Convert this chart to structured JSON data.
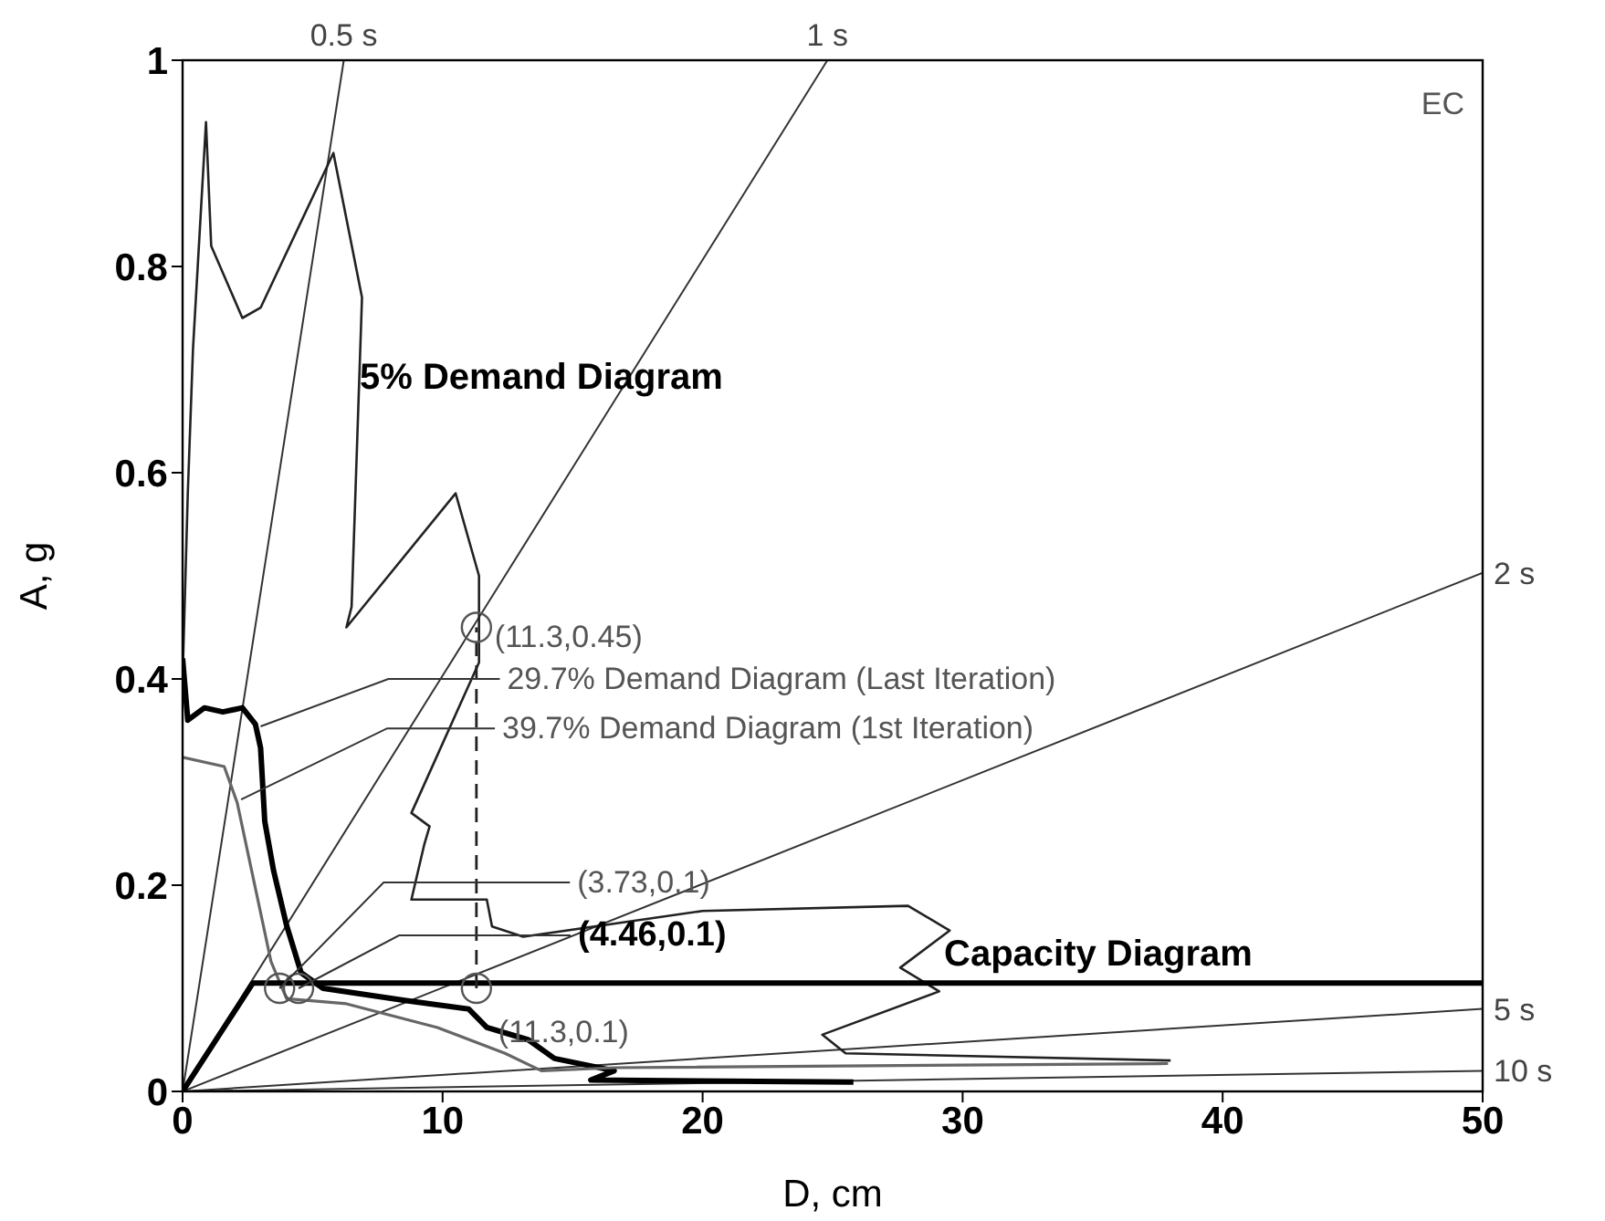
{
  "chart_data": {
    "type": "line",
    "xlabel": "D, cm",
    "ylabel": "A, g",
    "xlim": [
      0,
      50
    ],
    "ylim": [
      0,
      1
    ],
    "xticks": [
      0,
      10,
      20,
      30,
      40,
      50
    ],
    "yticks": [
      0,
      0.2,
      0.4,
      0.6,
      0.8,
      1
    ],
    "marker": "none",
    "series": [
      {
        "name": "0.5 s",
        "color": "#333333",
        "x": [
          0,
          6.2
        ],
        "values": [
          0,
          1
        ]
      },
      {
        "name": "1 s",
        "color": "#333333",
        "x": [
          0,
          24.8
        ],
        "values": [
          0,
          1
        ]
      },
      {
        "name": "2 s",
        "color": "#333333",
        "x": [
          0,
          50
        ],
        "values": [
          0,
          0.503
        ]
      },
      {
        "name": "5 s",
        "color": "#333333",
        "x": [
          0,
          50
        ],
        "values": [
          0,
          0.08
        ]
      },
      {
        "name": "10 s",
        "color": "#333333",
        "x": [
          0,
          50
        ],
        "values": [
          0,
          0.02
        ]
      },
      {
        "color": "#222222",
        "x": [
          0,
          0.2,
          0.4,
          0.9,
          1.1,
          2.3,
          3.0,
          5.8,
          6.9,
          6.5,
          6.3,
          10.5,
          11.4,
          11.4,
          8.8,
          9.5,
          9.3,
          8.8,
          11.7,
          11.9,
          13.1,
          20,
          27.9,
          29.5,
          27.6,
          29.1,
          24.6,
          25.5,
          38
        ],
        "values": [
          0.4,
          0.58,
          0.72,
          0.94,
          0.82,
          0.75,
          0.76,
          0.91,
          0.77,
          0.47,
          0.45,
          0.58,
          0.5,
          0.416,
          0.27,
          0.257,
          0.24,
          0.186,
          0.186,
          0.16,
          0.15,
          0.175,
          0.18,
          0.156,
          0.12,
          0.097,
          0.055,
          0.037,
          0.03
        ]
      },
      {
        "color": "#000000",
        "x": [
          0,
          0.2,
          0.84,
          1.55,
          2.3,
          2.8,
          3.0,
          3.16,
          3.5,
          4.0,
          4.56,
          5.4,
          8.6,
          11.0,
          11.7,
          13.3,
          14.3,
          16.6,
          15.7,
          25.8
        ],
        "values": [
          0.42,
          0.36,
          0.372,
          0.368,
          0.372,
          0.356,
          0.333,
          0.262,
          0.214,
          0.161,
          0.115,
          0.1,
          0.088,
          0.08,
          0.062,
          0.05,
          0.032,
          0.02,
          0.011,
          0.009
        ]
      },
      {
        "color": "#666666",
        "x": [
          0,
          1.6,
          2.1,
          2.8,
          3.4,
          4.0,
          6.3,
          9.8,
          12.4,
          13.8,
          16.6,
          37.9
        ],
        "values": [
          0.324,
          0.315,
          0.28,
          0.197,
          0.126,
          0.09,
          0.085,
          0.062,
          0.037,
          0.02,
          0.023,
          0.027
        ]
      },
      {
        "color": "#000000",
        "x": [
          0,
          2.7,
          50
        ],
        "values": [
          0,
          0.105,
          0.105
        ]
      },
      {
        "color": "#222222",
        "line_style": "dashed",
        "x": [
          11.3,
          11.3
        ],
        "values": [
          0.1,
          0.45
        ]
      },
      {
        "type": "scatter",
        "marker": "circle",
        "color": "#555555",
        "x": [
          11.3,
          11.3,
          3.73,
          4.46
        ],
        "values": [
          0.45,
          0.1,
          0.1,
          0.1
        ]
      }
    ],
    "annotations": [
      "EC",
      "5% Demand Diagram",
      {
        "text": "(11.3,0.45)",
        "x": 11.3,
        "y": 0.45
      },
      {
        "text": "29.7% Demand Diagram (Last Iteration)",
        "x": 3.0,
        "y": 0.354
      },
      {
        "text": "39.7% Demand Diagram (1st Iteration)",
        "x": 2.25,
        "y": 0.283
      },
      {
        "text": "(3.73,0.1)",
        "x": 3.73,
        "y": 0.1
      },
      {
        "text": "(4.46,0.1)",
        "x": 4.46,
        "y": 0.1
      },
      {
        "text": "(11.3,0.1)",
        "x": 11.3,
        "y": 0.1
      },
      "Capacity Diagram"
    ]
  }
}
